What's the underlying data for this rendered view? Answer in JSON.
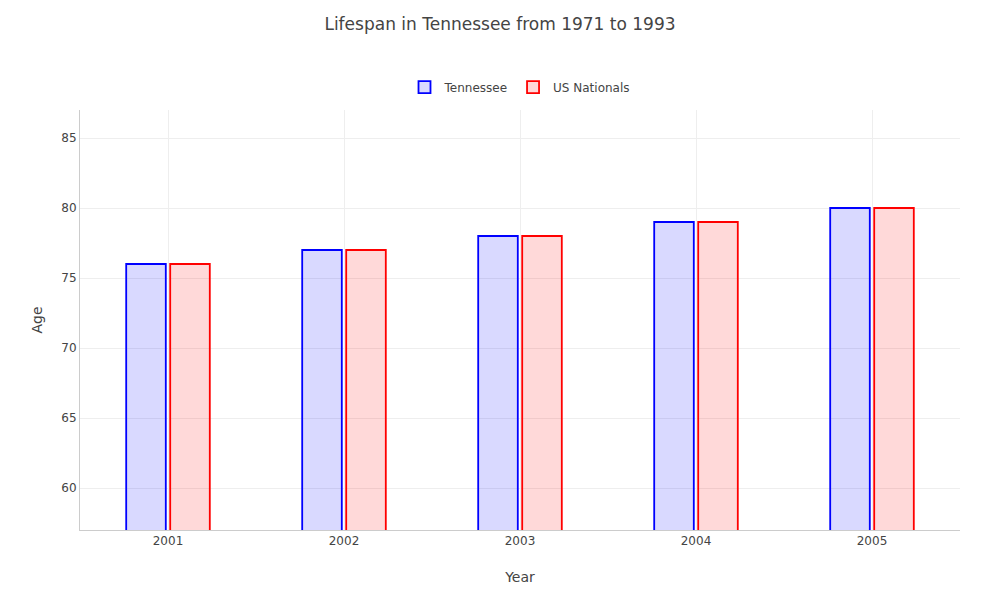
{
  "chart_data": {
    "type": "bar",
    "title": "Lifespan in Tennessee from 1971 to 1993",
    "xlabel": "Year",
    "ylabel": "Age",
    "categories": [
      "2001",
      "2002",
      "2003",
      "2004",
      "2005"
    ],
    "series": [
      {
        "name": "Tennessee",
        "color": "#0000ff",
        "values": [
          76,
          77,
          78,
          79,
          80
        ]
      },
      {
        "name": "US Nationals",
        "color": "#ff0000",
        "values": [
          76,
          77,
          78,
          79,
          80
        ]
      }
    ],
    "ylim": [
      57,
      87
    ],
    "yticks": [
      60,
      65,
      70,
      75,
      80,
      85
    ],
    "grid": true,
    "legend": "upper center"
  }
}
